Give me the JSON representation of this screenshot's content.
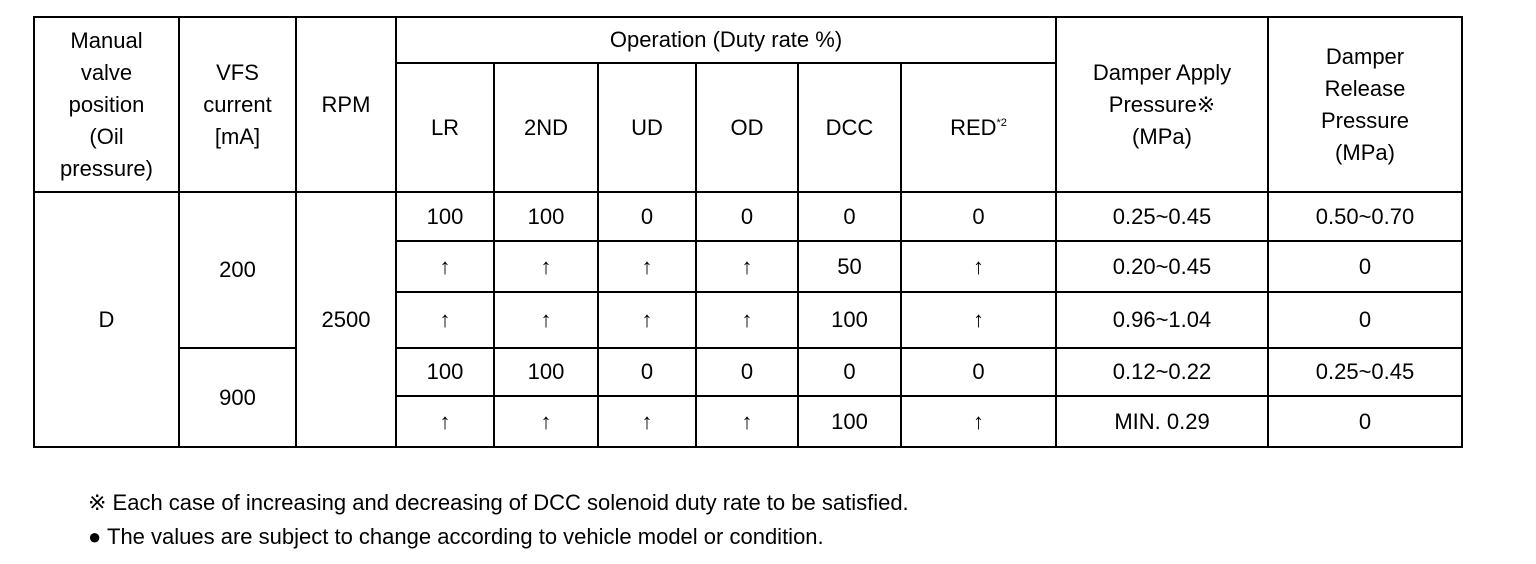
{
  "header": {
    "manual_valve": [
      "Manual",
      "valve",
      "position",
      "(Oil",
      "pressure)"
    ],
    "vfs_current": [
      "VFS",
      "current",
      "[mA]"
    ],
    "rpm": "RPM",
    "operation": "Operation (Duty rate %)",
    "operation_columns": [
      "LR",
      "2ND",
      "UD",
      "OD",
      "DCC",
      "RED"
    ],
    "red_note": "*2",
    "damper_apply": [
      "Damper Apply",
      "Pressure※",
      "(MPa)"
    ],
    "damper_release": [
      "Damper",
      "Release",
      "Pressure",
      "(MPa)"
    ]
  },
  "table": {
    "manual_valve_position": "D",
    "rpm": "2500",
    "vfs_groups": [
      {
        "current": "200",
        "rows": [
          [
            "100",
            "100",
            "0",
            "0",
            "0",
            "0",
            "0.25~0.45",
            "0.50~0.70"
          ],
          [
            "↑",
            "↑",
            "↑",
            "↑",
            "50",
            "↑",
            "0.20~0.45",
            "0"
          ],
          [
            "↑",
            "↑",
            "↑",
            "↑",
            "100",
            "↑",
            "0.96~1.04",
            "0"
          ]
        ]
      },
      {
        "current": "900",
        "rows": [
          [
            "100",
            "100",
            "0",
            "0",
            "0",
            "0",
            "0.12~0.22",
            "0.25~0.45"
          ],
          [
            "↑",
            "↑",
            "↑",
            "↑",
            "100",
            "↑",
            "MIN. 0.29",
            "0"
          ]
        ]
      }
    ]
  },
  "notes": [
    "※ Each case of increasing and decreasing of DCC solenoid duty rate to be satisfied.",
    "● The values are subject to change according to vehicle model or condition."
  ]
}
